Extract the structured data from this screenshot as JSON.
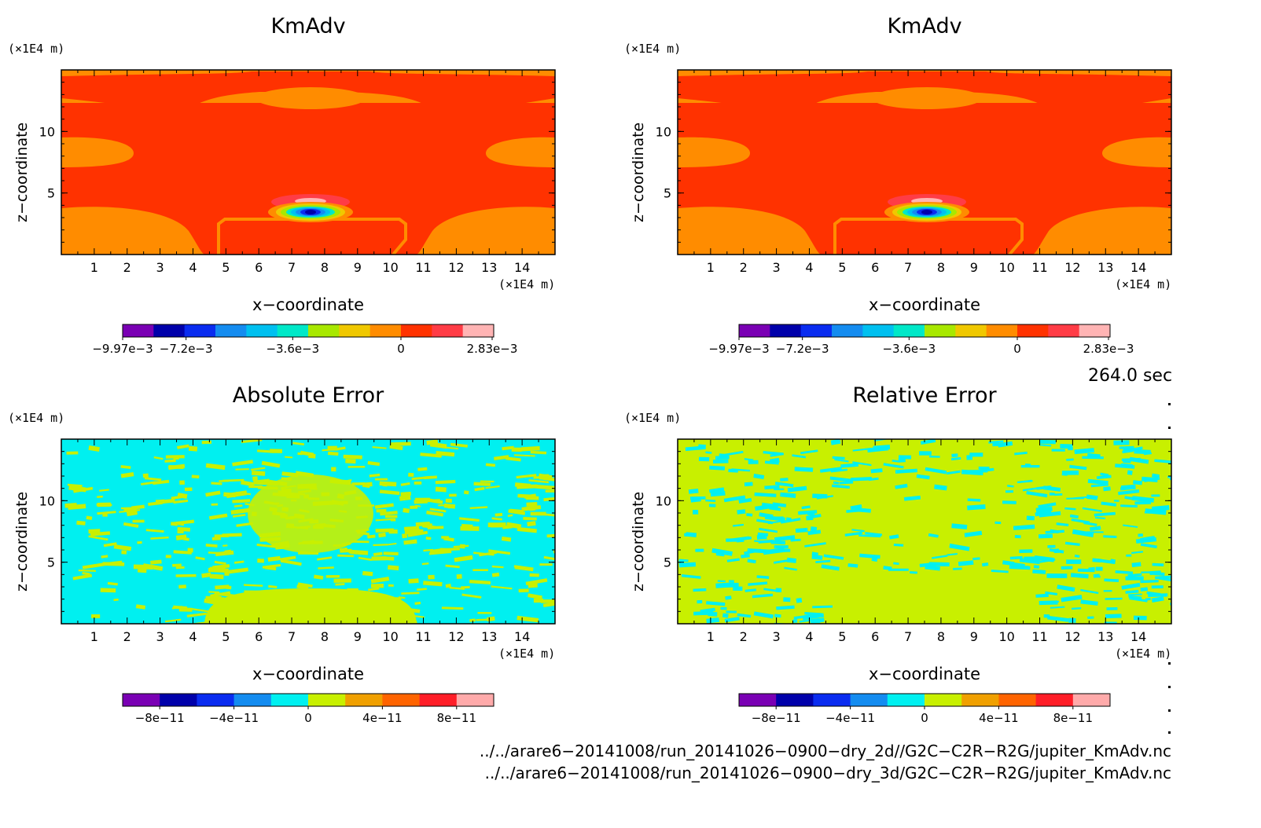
{
  "chart_data": [
    {
      "type": "heatmap",
      "title": "KmAdv",
      "xlabel": "x−coordinate",
      "ylabel": "z−coordinate",
      "x_unit": "(×1E4 m)",
      "y_unit": "(×1E4 m)",
      "xlim": [
        0,
        15
      ],
      "ylim": [
        0,
        15
      ],
      "xticks": [
        "1",
        "2",
        "3",
        "4",
        "5",
        "6",
        "7",
        "8",
        "9",
        "10",
        "11",
        "12",
        "13",
        "14"
      ],
      "yticks": [
        "5",
        "10"
      ],
      "pattern": "field",
      "colorbar": {
        "colors": [
          "#7a00b4",
          "#0000aa",
          "#0a2cf0",
          "#148cf0",
          "#00c0f0",
          "#00e8c8",
          "#a8e800",
          "#f0c800",
          "#ff8c00",
          "#ff3200",
          "#ff3c46",
          "#ffb4b4"
        ],
        "labels": [
          "−9.97e−3",
          "−7.2e−3",
          "−3.6e−3",
          "0",
          "2.83e−3"
        ]
      }
    },
    {
      "type": "heatmap",
      "title": "KmAdv",
      "xlabel": "x−coordinate",
      "ylabel": "z−coordinate",
      "x_unit": "(×1E4 m)",
      "y_unit": "(×1E4 m)",
      "xlim": [
        0,
        15
      ],
      "ylim": [
        0,
        15
      ],
      "xticks": [
        "1",
        "2",
        "3",
        "4",
        "5",
        "6",
        "7",
        "8",
        "9",
        "10",
        "11",
        "12",
        "13",
        "14"
      ],
      "yticks": [
        "5",
        "10"
      ],
      "pattern": "field",
      "colorbar": {
        "colors": [
          "#7a00b4",
          "#0000aa",
          "#0a2cf0",
          "#148cf0",
          "#00c0f0",
          "#00e8c8",
          "#a8e800",
          "#f0c800",
          "#ff8c00",
          "#ff3200",
          "#ff3c46",
          "#ffb4b4"
        ],
        "labels": [
          "−9.97e−3",
          "−7.2e−3",
          "−3.6e−3",
          "0",
          "2.83e−3"
        ]
      }
    },
    {
      "type": "heatmap",
      "title": "Absolute Error",
      "xlabel": "x−coordinate",
      "ylabel": "z−coordinate",
      "x_unit": "(×1E4 m)",
      "y_unit": "(×1E4 m)",
      "xlim": [
        0,
        15
      ],
      "ylim": [
        0,
        15
      ],
      "xticks": [
        "1",
        "2",
        "3",
        "4",
        "5",
        "6",
        "7",
        "8",
        "9",
        "10",
        "11",
        "12",
        "13",
        "14"
      ],
      "yticks": [
        "5",
        "10"
      ],
      "pattern": "noise_abs",
      "colorbar": {
        "colors": [
          "#7a00b4",
          "#0000aa",
          "#0a2cf0",
          "#148cf0",
          "#00f0f0",
          "#c8f000",
          "#f0a000",
          "#ff6400",
          "#ff1e28",
          "#ffaaaa"
        ],
        "labels": [
          "−8e−11",
          "−4e−11",
          "0",
          "4e−11",
          "8e−11"
        ]
      }
    },
    {
      "type": "heatmap",
      "title": "Relative Error",
      "xlabel": "x−coordinate",
      "ylabel": "z−coordinate",
      "x_unit": "(×1E4 m)",
      "y_unit": "(×1E4 m)",
      "xlim": [
        0,
        15
      ],
      "ylim": [
        0,
        15
      ],
      "xticks": [
        "1",
        "2",
        "3",
        "4",
        "5",
        "6",
        "7",
        "8",
        "9",
        "10",
        "11",
        "12",
        "13",
        "14"
      ],
      "yticks": [
        "5",
        "10"
      ],
      "pattern": "noise_rel",
      "colorbar": {
        "colors": [
          "#7a00b4",
          "#0000aa",
          "#0a2cf0",
          "#148cf0",
          "#00f0f0",
          "#c8f000",
          "#f0a000",
          "#ff6400",
          "#ff1e28",
          "#ffaaaa"
        ],
        "labels": [
          "−8e−11",
          "−4e−11",
          "0",
          "4e−11",
          "8e−11"
        ]
      }
    }
  ],
  "time_label": "264.0 sec",
  "file_paths": [
    "../../arare6−20141008/run_20141026−0900−dry_2d//G2C−C2R−R2G/jupiter_KmAdv.nc",
    "../../arare6−20141008/run_20141026−0900−dry_3d/G2C−C2R−R2G/jupiter_KmAdv.nc"
  ]
}
